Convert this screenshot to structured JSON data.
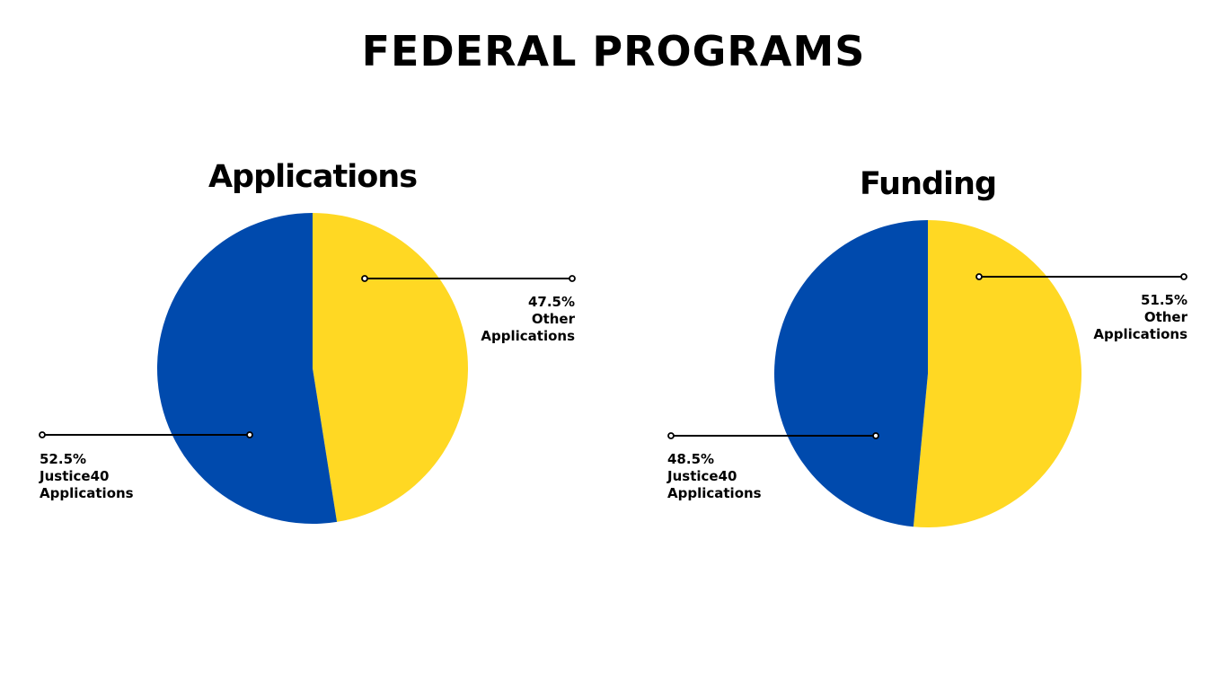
{
  "page": {
    "title": "FEDERAL PROGRAMS"
  },
  "colors": {
    "justice40": "#004AAD",
    "other": "#FFD823",
    "leader": "#000000"
  },
  "chart_data": [
    {
      "type": "pie",
      "title": "Applications",
      "slices": [
        {
          "label": "Other Applications",
          "value": 47.5,
          "percent_label": "47.5%",
          "name_line1": "Other",
          "name_line2": "Applications",
          "color": "#FFD823"
        },
        {
          "label": "Justice40 Applications",
          "value": 52.5,
          "percent_label": "52.5%",
          "name_line1": "Justice40",
          "name_line2": "Applications",
          "color": "#004AAD"
        }
      ]
    },
    {
      "type": "pie",
      "title": "Funding",
      "slices": [
        {
          "label": "Other Applications",
          "value": 51.5,
          "percent_label": "51.5%",
          "name_line1": "Other",
          "name_line2": "Applications",
          "color": "#FFD823"
        },
        {
          "label": "Justice40 Applications",
          "value": 48.5,
          "percent_label": "48.5%",
          "name_line1": "Justice40",
          "name_line2": "Applications",
          "color": "#004AAD"
        }
      ]
    }
  ]
}
